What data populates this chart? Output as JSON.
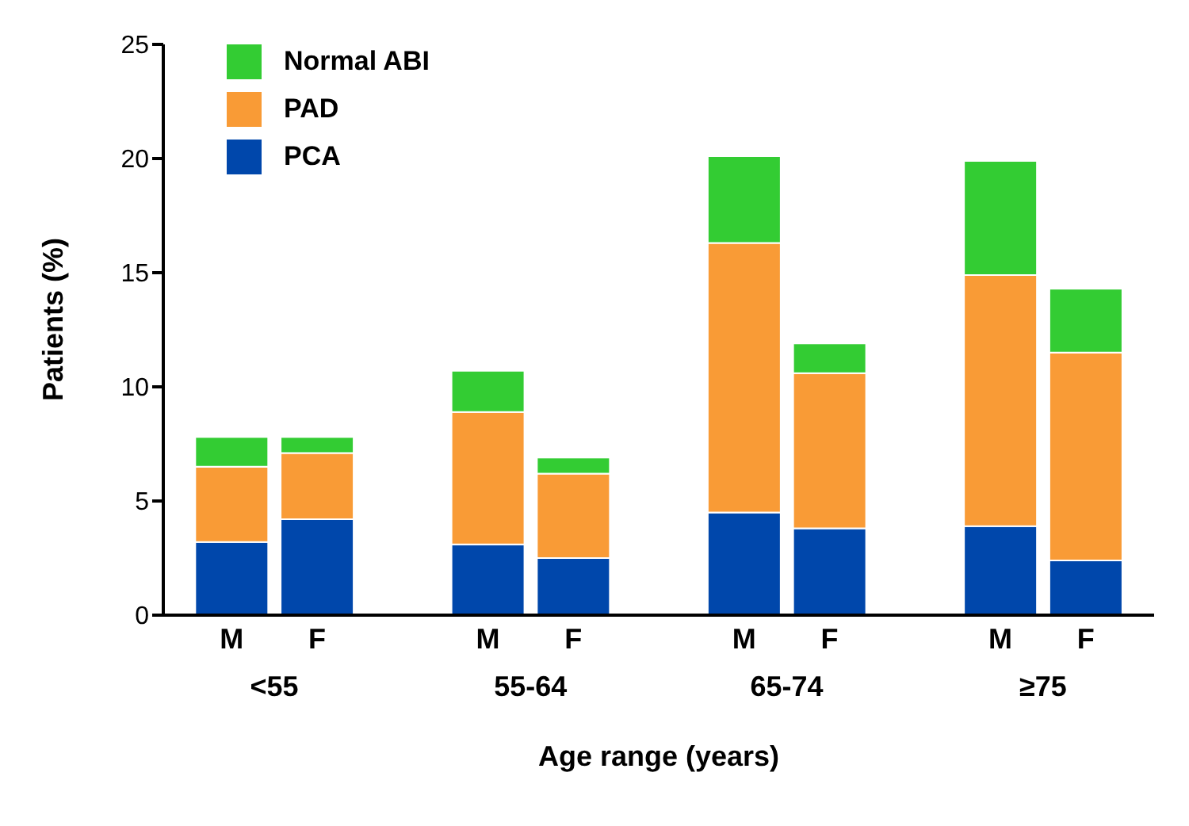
{
  "chart_data": {
    "type": "bar",
    "stacked": true,
    "xlabel": "Age range (years)",
    "ylabel": "Patients (%)",
    "categories": [
      "M",
      "F",
      "M",
      "F",
      "M",
      "F",
      "M",
      "F"
    ],
    "annotations": [
      "<55",
      "55-64",
      "65-74",
      "≥75"
    ],
    "series": [
      {
        "name": "PCA",
        "color": "#0047ab",
        "values": [
          3.2,
          4.2,
          3.1,
          2.5,
          4.5,
          3.8,
          3.9,
          2.4
        ]
      },
      {
        "name": "PAD",
        "color": "#f99b36",
        "values": [
          3.3,
          2.9,
          5.8,
          3.7,
          11.8,
          6.8,
          11.0,
          9.1
        ]
      },
      {
        "name": "Normal ABI",
        "color": "#33cc33",
        "values": [
          1.3,
          0.7,
          1.8,
          0.7,
          3.8,
          1.3,
          5.0,
          2.8
        ]
      }
    ],
    "ylim": [
      0,
      25
    ],
    "yticks": [
      0,
      5,
      10,
      15,
      20,
      25
    ],
    "legend": "top left",
    "grid": false
  }
}
